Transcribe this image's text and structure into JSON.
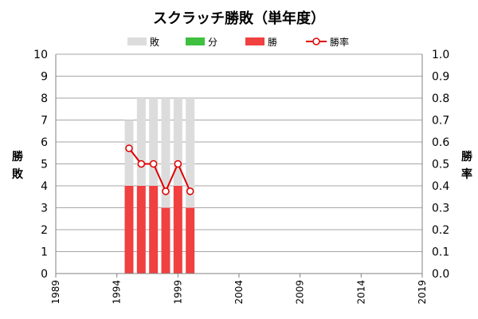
{
  "chart_data": {
    "type": "bar",
    "title": "スクラッチ勝敗（単年度）",
    "stacked": true,
    "x": [
      1995,
      1996,
      1997,
      1998,
      1999,
      2000
    ],
    "x_ticks": [
      "1989",
      "1994",
      "1999",
      "2004",
      "2009",
      "2014",
      "2019"
    ],
    "xlim": [
      1989,
      2019
    ],
    "ylabel_left": [
      "勝",
      "敗"
    ],
    "ylabel_right": [
      "勝",
      "率"
    ],
    "ylim_left": [
      0,
      10
    ],
    "ylim_right": [
      0,
      1.0
    ],
    "yticks_left": [
      "0",
      "1",
      "2",
      "3",
      "4",
      "5",
      "6",
      "7",
      "8",
      "9",
      "10"
    ],
    "yticks_right": [
      "0.0",
      "0.1",
      "0.2",
      "0.3",
      "0.4",
      "0.5",
      "0.6",
      "0.7",
      "0.8",
      "0.9",
      "1.0"
    ],
    "grid": true,
    "legend_position": "top",
    "series": [
      {
        "name": "勝",
        "kind": "bar",
        "color": "#f04040",
        "values": [
          4,
          4,
          4,
          3,
          4,
          3
        ]
      },
      {
        "name": "分",
        "kind": "bar",
        "color": "#40c040",
        "values": [
          0,
          0,
          0,
          0,
          0,
          0
        ]
      },
      {
        "name": "敗",
        "kind": "bar",
        "color": "#dcdcdc",
        "values": [
          3,
          4,
          4,
          5,
          4,
          5
        ]
      },
      {
        "name": "勝率",
        "kind": "line",
        "axis": "right",
        "color": "#e00000",
        "values": [
          0.571,
          0.5,
          0.5,
          0.375,
          0.5,
          0.375
        ]
      }
    ],
    "legend": [
      "敗",
      "分",
      "勝",
      "勝率"
    ]
  }
}
